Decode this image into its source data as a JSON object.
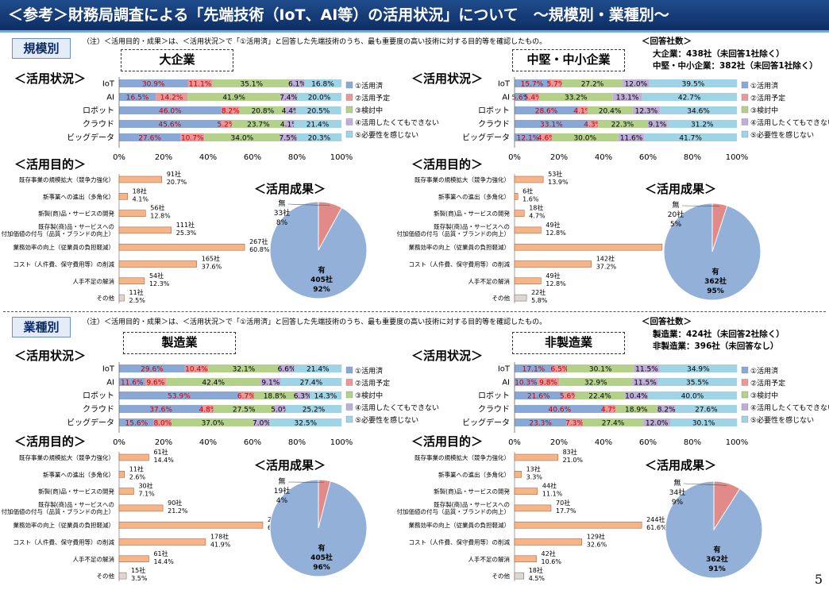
{
  "title": "＜参考＞財務局調査による「先端技術（IoT、AI等）の活用状況」について　～規模別・業種別～",
  "page_number": "5",
  "labels": {
    "status": "＜活用状況＞",
    "purpose": "＜活用目的＞",
    "result": "＜活用成果＞",
    "answer_count": "＜回答社数＞"
  },
  "legend": [
    "①活用済",
    "②活用予定",
    "③検討中",
    "④活用したくてもできない",
    "⑤必要性を感じない"
  ],
  "colors": [
    "#8aa8d6",
    "#e89898",
    "#b4d18a",
    "#bfaed8",
    "#9fd4e6"
  ],
  "purpose_color": "#f6b489",
  "other_color": "#d8d8d8",
  "pie_colors": {
    "yes": "#92b0d8",
    "no": "#e08b88"
  },
  "axis_ticks": [
    "0%",
    "20%",
    "40%",
    "60%",
    "80%",
    "100%"
  ],
  "sections": [
    {
      "label": "規模別",
      "note": "（注）＜活用目的・成果＞は、＜活用状況＞で「①活用済」と回答した先端技術のうち、最も重要度の高い技術に対する目的等を確認したもの。",
      "answer_lines": [
        "大企業：438社（未回答1社除く）",
        "中堅・中小企業：382社（未回答1社除く）"
      ],
      "panels": [
        {
          "title": "大企業",
          "chart_data": {
            "type": "bar",
            "stacked": true,
            "categories": [
              "IoT",
              "AI",
              "ロボット",
              "クラウド",
              "ビッグデータ"
            ],
            "series": [
              {
                "name": "①活用済",
                "values": [
                  30.9,
                  16.5,
                  46.0,
                  45.6,
                  27.6
                ]
              },
              {
                "name": "②活用予定",
                "values": [
                  11.1,
                  14.2,
                  8.2,
                  5.2,
                  10.7
                ]
              },
              {
                "name": "③検討中",
                "values": [
                  35.1,
                  41.9,
                  20.8,
                  23.7,
                  34.0
                ]
              },
              {
                "name": "④活用したくてもできない",
                "values": [
                  6.1,
                  7.4,
                  4.4,
                  4.1,
                  7.5
                ]
              },
              {
                "name": "⑤必要性を感じない",
                "values": [
                  16.8,
                  20.0,
                  20.5,
                  21.4,
                  20.3
                ]
              }
            ],
            "xlim": [
              0,
              100
            ]
          },
          "purposes": {
            "type": "bar",
            "categories": [
              "既存事業の規模拡大（競争力強化）",
              "新事業への進出（多角化）",
              "新製(商)品・サービスの開発",
              "既存製(商)品・サービスへの\n付加価値の付与（品質・ブランドの向上）",
              "業務効率の向上（従業員の負担軽減）",
              "コスト（人件費、保守費用等）の削減",
              "人手不足の解消",
              "その他"
            ],
            "counts": [
              "91社",
              "18社",
              "56社",
              "111社",
              "267社",
              "165社",
              "54社",
              "11社"
            ],
            "values": [
              20.7,
              4.1,
              12.8,
              25.3,
              60.8,
              37.6,
              12.3,
              2.5
            ]
          },
          "result": {
            "type": "pie",
            "yes": {
              "label": "有",
              "count": "405社",
              "pct": 92
            },
            "no": {
              "label": "無",
              "count": "33社",
              "pct": 8
            }
          }
        },
        {
          "title": "中堅・中小企業",
          "chart_data": {
            "type": "bar",
            "stacked": true,
            "categories": [
              "IoT",
              "AI",
              "ロボット",
              "クラウド",
              "ビッグデータ"
            ],
            "series": [
              {
                "name": "①活用済",
                "values": [
                  15.7,
                  5.6,
                  28.6,
                  33.1,
                  12.1
                ]
              },
              {
                "name": "②活用予定",
                "values": [
                  5.7,
                  5.4,
                  4.1,
                  4.3,
                  4.6
                ]
              },
              {
                "name": "③検討中",
                "values": [
                  27.2,
                  33.2,
                  20.4,
                  22.3,
                  30.0
                ]
              },
              {
                "name": "④活用したくてもできない",
                "values": [
                  12.0,
                  13.1,
                  12.3,
                  9.1,
                  11.6
                ]
              },
              {
                "name": "⑤必要性を感じない",
                "values": [
                  39.5,
                  42.7,
                  34.6,
                  31.2,
                  41.7
                ]
              }
            ],
            "xlim": [
              0,
              100
            ]
          },
          "purposes": {
            "type": "bar",
            "categories": [
              "既存事業の規模拡大（競争力強化）",
              "新事業への進出（多角化）",
              "新製(商)品・サービスの開発",
              "既存製(商)品・サービスへの\n付加価値の付与（品質・ブランドの向上）",
              "業務効率の向上（従業員の負担軽減）",
              "コスト（人件費、保守費用等）の削減",
              "人手不足の解消",
              "その他"
            ],
            "counts": [
              "53社",
              "6社",
              "18社",
              "49社",
              "273社",
              "142社",
              "49社",
              "22社"
            ],
            "values": [
              13.9,
              1.6,
              4.7,
              12.8,
              71.5,
              37.2,
              12.8,
              5.8
            ]
          },
          "result": {
            "type": "pie",
            "yes": {
              "label": "有",
              "count": "362社",
              "pct": 95
            },
            "no": {
              "label": "無",
              "count": "20社",
              "pct": 5
            }
          }
        }
      ]
    },
    {
      "label": "業種別",
      "note": "（注）＜活用目的・成果＞は、＜活用状況＞で「①活用済」と回答した先端技術のうち、最も重要度の高い技術に対する目的等を確認したもの。",
      "answer_lines": [
        "製造業：424社（未回答2社除く）",
        "非製造業：396社（未回答なし）"
      ],
      "panels": [
        {
          "title": "製造業",
          "chart_data": {
            "type": "bar",
            "stacked": true,
            "categories": [
              "IoT",
              "AI",
              "ロボット",
              "クラウド",
              "ビッグデータ"
            ],
            "series": [
              {
                "name": "①活用済",
                "values": [
                  29.6,
                  11.6,
                  53.9,
                  37.6,
                  15.6
                ]
              },
              {
                "name": "②活用予定",
                "values": [
                  10.4,
                  9.6,
                  6.7,
                  4.8,
                  8.0
                ]
              },
              {
                "name": "③検討中",
                "values": [
                  32.1,
                  42.4,
                  18.8,
                  27.5,
                  37.0
                ]
              },
              {
                "name": "④活用したくてもできない",
                "values": [
                  6.6,
                  9.1,
                  6.3,
                  5.0,
                  7.0
                ]
              },
              {
                "name": "⑤必要性を感じない",
                "values": [
                  21.4,
                  27.4,
                  14.3,
                  25.2,
                  32.5
                ]
              }
            ],
            "xlim": [
              0,
              100
            ]
          },
          "purposes": {
            "type": "bar",
            "categories": [
              "既存事業の規模拡大（競争力強化）",
              "新事業への進出（多角化）",
              "新製(商)品・サービスの開発",
              "既存製(商)品・サービスへの\n付加価値の付与（品質・ブランドの向上）",
              "業務効率の向上（従業員の負担軽減）",
              "コスト（人件費、保守費用等）の削減",
              "人手不足の解消",
              "その他"
            ],
            "counts": [
              "61社",
              "11社",
              "30社",
              "90社",
              "296社",
              "178社",
              "61社",
              "15社"
            ],
            "values": [
              14.4,
              2.6,
              7.1,
              21.2,
              69.6,
              41.9,
              14.4,
              3.5
            ]
          },
          "result": {
            "type": "pie",
            "yes": {
              "label": "有",
              "count": "405社",
              "pct": 96
            },
            "no": {
              "label": "無",
              "count": "19社",
              "pct": 4
            }
          }
        },
        {
          "title": "非製造業",
          "chart_data": {
            "type": "bar",
            "stacked": true,
            "categories": [
              "IoT",
              "AI",
              "ロボット",
              "クラウド",
              "ビッグデータ"
            ],
            "series": [
              {
                "name": "①活用済",
                "values": [
                  17.1,
                  10.3,
                  21.6,
                  40.6,
                  23.3
                ]
              },
              {
                "name": "②活用予定",
                "values": [
                  6.5,
                  9.8,
                  5.6,
                  4.7,
                  7.3
                ]
              },
              {
                "name": "③検討中",
                "values": [
                  30.1,
                  32.9,
                  22.4,
                  18.9,
                  27.4
                ]
              },
              {
                "name": "④活用したくてもできない",
                "values": [
                  11.5,
                  11.5,
                  10.4,
                  8.2,
                  12.0
                ]
              },
              {
                "name": "⑤必要性を感じない",
                "values": [
                  34.9,
                  35.5,
                  40.0,
                  27.6,
                  30.1
                ]
              }
            ],
            "xlim": [
              0,
              100
            ]
          },
          "purposes": {
            "type": "bar",
            "categories": [
              "既存事業の規模拡大（競争力強化）",
              "新事業への進出（多角化）",
              "新製(商)品・サービスの開発",
              "既存製(商)品・サービスへの\n付加価値の付与（品質・ブランドの向上）",
              "業務効率の向上（従業員の負担軽減）",
              "コスト（人件費、保守費用等）の削減",
              "人手不足の解消",
              "その他"
            ],
            "counts": [
              "83社",
              "13社",
              "44社",
              "70社",
              "244社",
              "129社",
              "42社",
              "18社"
            ],
            "values": [
              21.0,
              3.3,
              11.1,
              17.7,
              61.6,
              32.6,
              10.6,
              4.5
            ]
          },
          "result": {
            "type": "pie",
            "yes": {
              "label": "有",
              "count": "362社",
              "pct": 91
            },
            "no": {
              "label": "無",
              "count": "34社",
              "pct": 9
            }
          }
        }
      ]
    }
  ]
}
